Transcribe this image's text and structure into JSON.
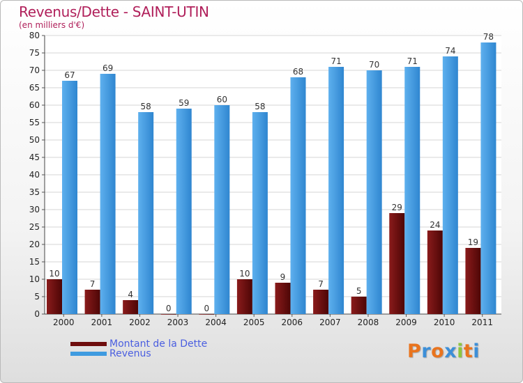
{
  "chart_data": {
    "type": "bar",
    "title": "Revenus/Dette - SAINT-UTIN",
    "subtitle": "(en milliers d'€)",
    "categories": [
      "2000",
      "2001",
      "2002",
      "2003",
      "2004",
      "2005",
      "2006",
      "2007",
      "2008",
      "2009",
      "2010",
      "2011"
    ],
    "series": [
      {
        "name": "Montant de la Dette",
        "color": "#6e0d0d",
        "values": [
          10,
          7,
          4,
          0,
          0,
          10,
          9,
          7,
          5,
          29,
          24,
          19
        ]
      },
      {
        "name": "Revenus",
        "color": "#3f9be0",
        "values": [
          67,
          69,
          58,
          59,
          60,
          58,
          68,
          71,
          70,
          71,
          74,
          78
        ]
      }
    ],
    "ylim": [
      0,
      80
    ],
    "yticks": [
      0,
      5,
      10,
      15,
      20,
      25,
      30,
      35,
      40,
      45,
      50,
      55,
      60,
      65,
      70,
      75,
      80
    ],
    "grid": true,
    "legend": "bottom-left"
  },
  "logo": {
    "letters": [
      {
        "ch": "P",
        "color": "#e9741e"
      },
      {
        "ch": "r",
        "color": "#3c8fd8"
      },
      {
        "ch": "o",
        "color": "#e9741e"
      },
      {
        "ch": "x",
        "color": "#3c8fd8"
      },
      {
        "ch": "i",
        "color": "#8cc63f"
      },
      {
        "ch": "t",
        "color": "#e9741e"
      },
      {
        "ch": "i",
        "color": "#3c8fd8"
      }
    ]
  }
}
